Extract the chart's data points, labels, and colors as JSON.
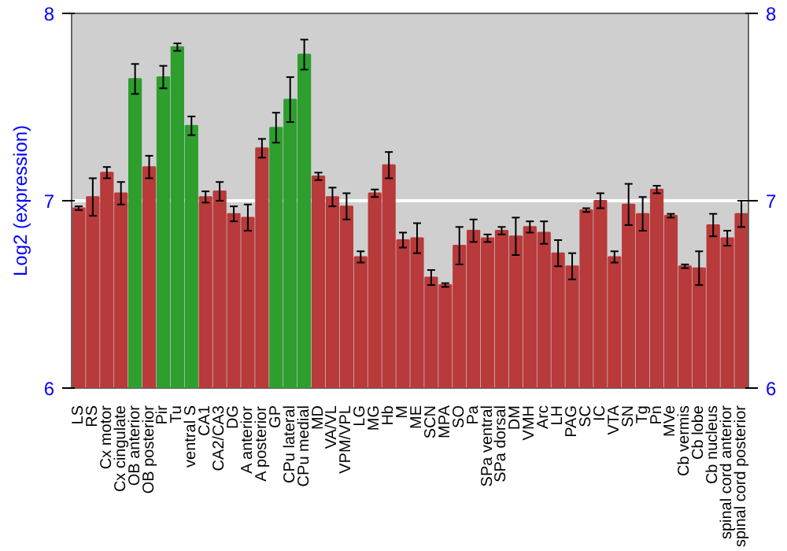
{
  "chart_data": {
    "type": "bar",
    "ylabel": "Log2 (expression)",
    "categories": [
      "LS",
      "RS",
      "Cx motor",
      "Cx cingulate",
      "OB anterior",
      "OB posterior",
      "Pir",
      "Tu",
      "ventral S",
      "CA1",
      "CA2/CA3",
      "DG",
      "A anterior",
      "A posterior",
      "GP",
      "CPu lateral",
      "CPu medial",
      "MD",
      "VA/VL",
      "VPM/VPL",
      "LG",
      "MG",
      "Hb",
      "M",
      "ME",
      "SCN",
      "MPA",
      "SO",
      "Pa",
      "SPa ventral",
      "SPa dorsal",
      "DM",
      "VMH",
      "Arc",
      "LH",
      "PAG",
      "SC",
      "IC",
      "VTA",
      "SN",
      "Tg",
      "Pn",
      "MVe",
      "Cb vermis",
      "Cb lobe",
      "Cb nucleus",
      "spinal cord anterior",
      "spinal cord posterior"
    ],
    "values": [
      6.96,
      7.02,
      7.15,
      7.04,
      7.65,
      7.18,
      7.66,
      7.82,
      7.4,
      7.02,
      7.05,
      6.93,
      6.91,
      7.28,
      7.39,
      7.54,
      7.78,
      7.13,
      7.02,
      6.97,
      6.7,
      7.04,
      7.19,
      6.79,
      6.8,
      6.59,
      6.55,
      6.76,
      6.84,
      6.8,
      6.84,
      6.81,
      6.86,
      6.83,
      6.72,
      6.65,
      6.95,
      7.0,
      6.7,
      6.98,
      6.93,
      7.06,
      6.92,
      6.65,
      6.64,
      6.87,
      6.8,
      6.93
    ],
    "errors": [
      0.01,
      0.1,
      0.03,
      0.06,
      0.08,
      0.06,
      0.06,
      0.02,
      0.05,
      0.03,
      0.05,
      0.04,
      0.07,
      0.05,
      0.08,
      0.12,
      0.08,
      0.02,
      0.05,
      0.07,
      0.03,
      0.02,
      0.07,
      0.04,
      0.08,
      0.04,
      0.01,
      0.1,
      0.06,
      0.02,
      0.02,
      0.1,
      0.03,
      0.06,
      0.07,
      0.07,
      0.01,
      0.04,
      0.03,
      0.11,
      0.09,
      0.02,
      0.01,
      0.01,
      0.09,
      0.06,
      0.04,
      0.07
    ],
    "colors": [
      "#b83a3a",
      "#b83a3a",
      "#b83a3a",
      "#b83a3a",
      "#2e9e2e",
      "#b83a3a",
      "#2e9e2e",
      "#2e9e2e",
      "#2e9e2e",
      "#b83a3a",
      "#b83a3a",
      "#b83a3a",
      "#b83a3a",
      "#b83a3a",
      "#2e9e2e",
      "#2e9e2e",
      "#2e9e2e",
      "#b83a3a",
      "#b83a3a",
      "#b83a3a",
      "#b83a3a",
      "#b83a3a",
      "#b83a3a",
      "#b83a3a",
      "#b83a3a",
      "#b83a3a",
      "#b83a3a",
      "#b83a3a",
      "#b83a3a",
      "#b83a3a",
      "#b83a3a",
      "#b83a3a",
      "#b83a3a",
      "#b83a3a",
      "#b83a3a",
      "#b83a3a",
      "#b83a3a",
      "#b83a3a",
      "#b83a3a",
      "#b83a3a",
      "#b83a3a",
      "#b83a3a",
      "#b83a3a",
      "#b83a3a",
      "#b83a3a",
      "#b83a3a",
      "#b83a3a",
      "#b83a3a"
    ],
    "ylim": [
      6,
      8
    ],
    "yticks": [
      6,
      7,
      8
    ],
    "y2lim": [
      6,
      8
    ],
    "y2ticks": [
      6,
      7,
      8
    ],
    "grid": "y"
  }
}
